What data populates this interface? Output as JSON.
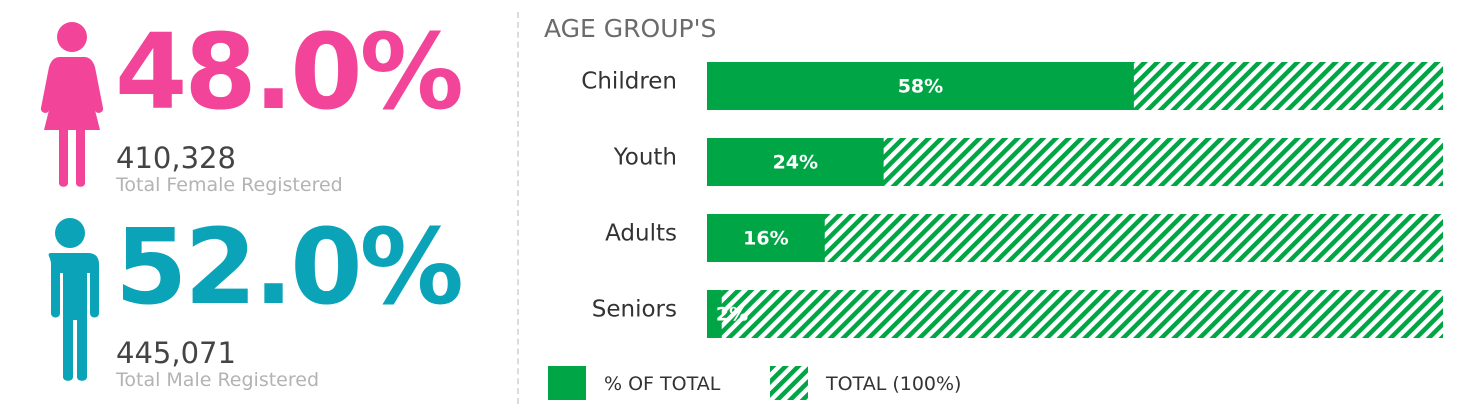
{
  "female": {
    "percent": "48.0%",
    "count": "410,328",
    "label": "Total Female Registered",
    "color": "#f2459a",
    "icon": "female-figure-icon"
  },
  "male": {
    "percent": "52.0%",
    "count": "445,071",
    "label": "Total Male Registered",
    "color": "#0aa3b7",
    "icon": "male-figure-icon"
  },
  "chart_data": {
    "type": "bar",
    "orientation": "horizontal",
    "stacked_background": true,
    "title": "AGE GROUP'S",
    "categories": [
      "Children",
      "Youth",
      "Adults",
      "Seniors"
    ],
    "series": [
      {
        "name": "% OF TOTAL",
        "values": [
          58,
          24,
          16,
          2
        ],
        "color": "#00a645"
      },
      {
        "name": "TOTAL (100%)",
        "values": [
          100,
          100,
          100,
          100
        ],
        "color": "#00a645",
        "pattern": "diagonal-hatch"
      }
    ],
    "value_labels": [
      "58%",
      "24%",
      "16%",
      "2%"
    ],
    "xlim": [
      0,
      100
    ],
    "grid": false,
    "legend_position": "bottom-left"
  }
}
